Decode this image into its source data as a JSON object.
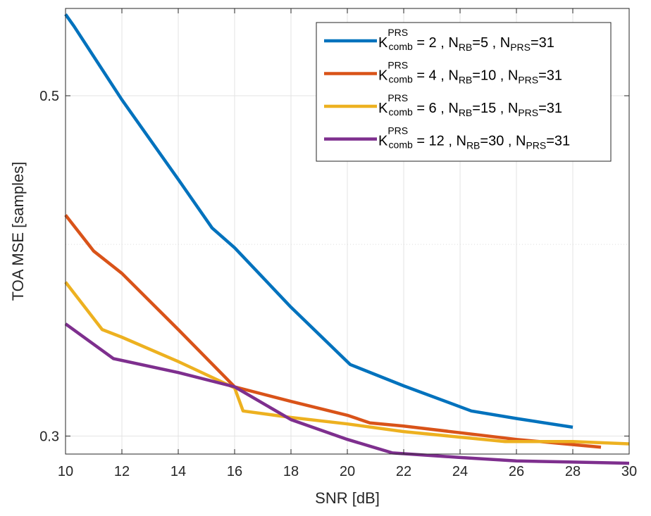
{
  "chart_data": {
    "type": "line",
    "xlabel": "SNR [dB]",
    "ylabel": "TOA MSE [samples]",
    "xlim": [
      10,
      30
    ],
    "ylim": [
      0.292,
      0.57
    ],
    "y_scale": "log",
    "xticks": [
      10,
      12,
      14,
      16,
      18,
      20,
      22,
      24,
      26,
      28,
      30
    ],
    "yticks": [
      0.3,
      0.5
    ],
    "y_minor_gridlines": [
      0.4
    ],
    "grid": true,
    "legend_position": "top-right",
    "series": [
      {
        "name": "K comb PRS = 2 , N RB =5 , N PRS =31",
        "legend": {
          "k_base": "K",
          "k_sup": "PRS",
          "k_sub": "comb",
          "k_val": " = 2 , ",
          "rb_base": "N",
          "rb_sub": "RB",
          "rb_val": "=5 , ",
          "prs_base": "N",
          "prs_sub": "PRS",
          "prs_val": "=31"
        },
        "color": "#0072BD",
        "x": [
          10,
          10.3,
          12,
          14,
          15.2,
          16,
          18,
          20.1,
          22,
          24.4,
          26,
          28
        ],
        "y": [
          0.565,
          0.555,
          0.497,
          0.441,
          0.41,
          0.398,
          0.364,
          0.334,
          0.3235,
          0.3115,
          0.308,
          0.304
        ]
      },
      {
        "name": "K comb PRS = 4 , N RB =10 , N PRS =31",
        "legend": {
          "k_base": "K",
          "k_sup": "PRS",
          "k_sub": "comb",
          "k_val": " = 4 , ",
          "rb_base": "N",
          "rb_sub": "RB",
          "rb_val": "=10 , ",
          "prs_base": "N",
          "prs_sub": "PRS",
          "prs_val": "=31"
        },
        "color": "#D95319",
        "x": [
          10,
          11,
          12,
          14,
          16,
          18,
          20,
          20.8,
          22,
          24,
          26,
          29
        ],
        "y": [
          0.418,
          0.396,
          0.383,
          0.352,
          0.323,
          0.316,
          0.3095,
          0.306,
          0.3045,
          0.3015,
          0.2985,
          0.295
        ]
      },
      {
        "name": "K comb PRS = 6 , N RB =15 , N PRS =31",
        "legend": {
          "k_base": "K",
          "k_sup": "PRS",
          "k_sub": "comb",
          "k_val": " = 6 , ",
          "rb_base": "N",
          "rb_sub": "RB",
          "rb_val": "=15 , ",
          "prs_base": "N",
          "prs_sub": "PRS",
          "prs_val": "=31"
        },
        "color": "#EDB120",
        "x": [
          10,
          11.3,
          12,
          14,
          16,
          16.3,
          18,
          20,
          22,
          24,
          25.6,
          28,
          30
        ],
        "y": [
          0.378,
          0.352,
          0.348,
          0.3355,
          0.3225,
          0.3115,
          0.3085,
          0.3055,
          0.302,
          0.2995,
          0.2975,
          0.2975,
          0.2965
        ]
      },
      {
        "name": "K comb PRS = 12 , N RB =30 , N PRS =31",
        "legend": {
          "k_base": "K",
          "k_sup": "PRS",
          "k_sub": "comb",
          "k_val": " = 12 , ",
          "rb_base": "N",
          "rb_sub": "RB",
          "rb_val": "=30 , ",
          "prs_base": "N",
          "prs_sub": "PRS",
          "prs_val": "=31"
        },
        "color": "#7E2F8E",
        "x": [
          10,
          11.7,
          14,
          16,
          18,
          20,
          21.6,
          24,
          26,
          28,
          30
        ],
        "y": [
          0.355,
          0.337,
          0.33,
          0.323,
          0.3075,
          0.2985,
          0.2925,
          0.2905,
          0.289,
          0.2885,
          0.288
        ]
      }
    ]
  }
}
